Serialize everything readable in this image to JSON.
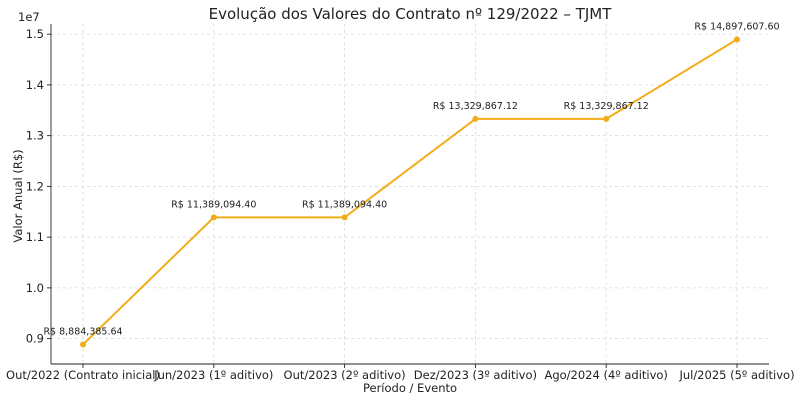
{
  "chart_data": {
    "type": "line",
    "title": "Evolução dos Valores do Contrato nº 129/2022 – TJMT",
    "xlabel": "Período / Evento",
    "ylabel": "Valor Anual (R$)",
    "y_offset_label": "1e7",
    "categories": [
      "Out/2022 (Contrato inicial)",
      "Jun/2023 (1º aditivo)",
      "Out/2023 (2º aditivo)",
      "Dez/2023 (3º aditivo)",
      "Ago/2024 (4º aditivo)",
      "Jul/2025 (5º aditivo)"
    ],
    "values": [
      8884385.64,
      11389094.4,
      11389094.4,
      13329867.12,
      13329867.12,
      14897607.6
    ],
    "data_labels": [
      "R$ 8,884,385.64",
      "R$ 11,389,094.40",
      "R$ 11,389,094.40",
      "R$ 13,329,867.12",
      "R$ 13,329,867.12",
      "R$ 14,897,607.60"
    ],
    "ylim": [
      8500000,
      15200000
    ],
    "yticks": [
      9000000,
      10000000,
      11000000,
      12000000,
      13000000,
      14000000,
      15000000
    ],
    "ytick_labels": [
      "0.9",
      "1.0",
      "1.1",
      "1.2",
      "1.3",
      "1.4",
      "1.5"
    ],
    "grid": true,
    "line_color": "#f2ac1a"
  }
}
